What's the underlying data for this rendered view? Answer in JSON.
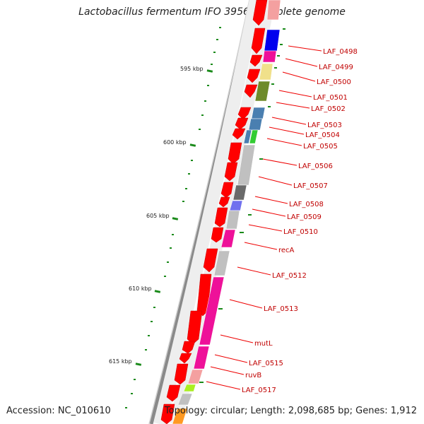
{
  "title": "Lactobacillus fermentum IFO 3956, complete genome",
  "footer": {
    "accession": "Accession: NC_010610",
    "stats": "Topology: circular; Length: 2,098,685 bp; Genes: 1,912"
  },
  "colors": {
    "backbone": "#8a8a8a",
    "forward_gene": "#ff0000",
    "label_text": "#c00000",
    "tick": "#1a8a1a"
  },
  "ticks": [
    {
      "label": "595 kbp"
    },
    {
      "label": "600 kbp"
    },
    {
      "label": "605 kbp"
    },
    {
      "label": "610 kbp"
    },
    {
      "label": "615 kbp"
    }
  ],
  "labels": [
    "LAF_0498",
    "LAF_0499",
    "LAF_0500",
    "LAF_0501",
    "LAF_0502",
    "LAF_0503",
    "LAF_0504",
    "LAF_0505",
    "LAF_0506",
    "LAF_0507",
    "LAF_0508",
    "LAF_0509",
    "LAF_0510",
    "recA",
    "LAF_0512",
    "LAF_0513",
    "mutL",
    "LAF_0515",
    "ruvB",
    "LAF_0517"
  ]
}
